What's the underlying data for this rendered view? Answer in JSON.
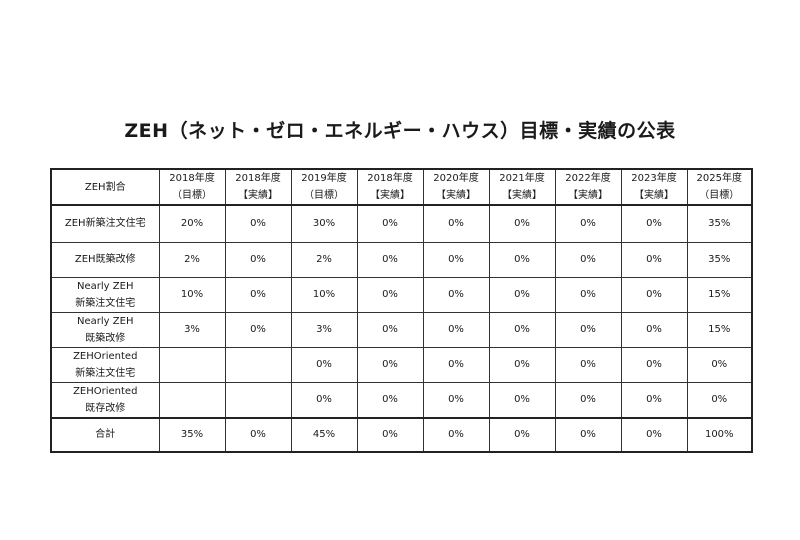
{
  "title": "ZEH（ネット・ゼロ・エネルギー・ハウス）目標・実績の公表",
  "table": {
    "corner_label": "ZEH割合",
    "columns": [
      {
        "year": "2018年度",
        "kind": "（目標）"
      },
      {
        "year": "2018年度",
        "kind": "【実績】"
      },
      {
        "year": "2019年度",
        "kind": "（目標）"
      },
      {
        "year": "2018年度",
        "kind": "【実績】"
      },
      {
        "year": "2020年度",
        "kind": "【実績】"
      },
      {
        "year": "2021年度",
        "kind": "【実績】"
      },
      {
        "year": "2022年度",
        "kind": "【実績】"
      },
      {
        "year": "2023年度",
        "kind": "【実績】"
      },
      {
        "year": "2025年度",
        "kind": "（目標）"
      }
    ],
    "rows": [
      {
        "label_line1": "ZEH新築注文住宅",
        "label_line2": "",
        "values": [
          "20%",
          "0%",
          "30%",
          "0%",
          "0%",
          "0%",
          "0%",
          "0%",
          "35%"
        ]
      },
      {
        "label_line1": "ZEH既築改修",
        "label_line2": "",
        "values": [
          "2%",
          "0%",
          "2%",
          "0%",
          "0%",
          "0%",
          "0%",
          "0%",
          "35%"
        ]
      },
      {
        "label_line1": "Nearly ZEH",
        "label_line2": "新築注文住宅",
        "values": [
          "10%",
          "0%",
          "10%",
          "0%",
          "0%",
          "0%",
          "0%",
          "0%",
          "15%"
        ]
      },
      {
        "label_line1": "Nearly ZEH",
        "label_line2": "既築改修",
        "values": [
          "3%",
          "0%",
          "3%",
          "0%",
          "0%",
          "0%",
          "0%",
          "0%",
          "15%"
        ]
      },
      {
        "label_line1": "ZEHOriented",
        "label_line2": "新築注文住宅",
        "values": [
          "",
          "",
          "0%",
          "0%",
          "0%",
          "0%",
          "0%",
          "0%",
          "0%"
        ]
      },
      {
        "label_line1": "ZEHOriented",
        "label_line2": "既存改修",
        "values": [
          "",
          "",
          "0%",
          "0%",
          "0%",
          "0%",
          "0%",
          "0%",
          "0%"
        ]
      }
    ],
    "total": {
      "label": "合計",
      "values": [
        "35%",
        "0%",
        "45%",
        "0%",
        "0%",
        "0%",
        "0%",
        "0%",
        "100%"
      ]
    }
  }
}
